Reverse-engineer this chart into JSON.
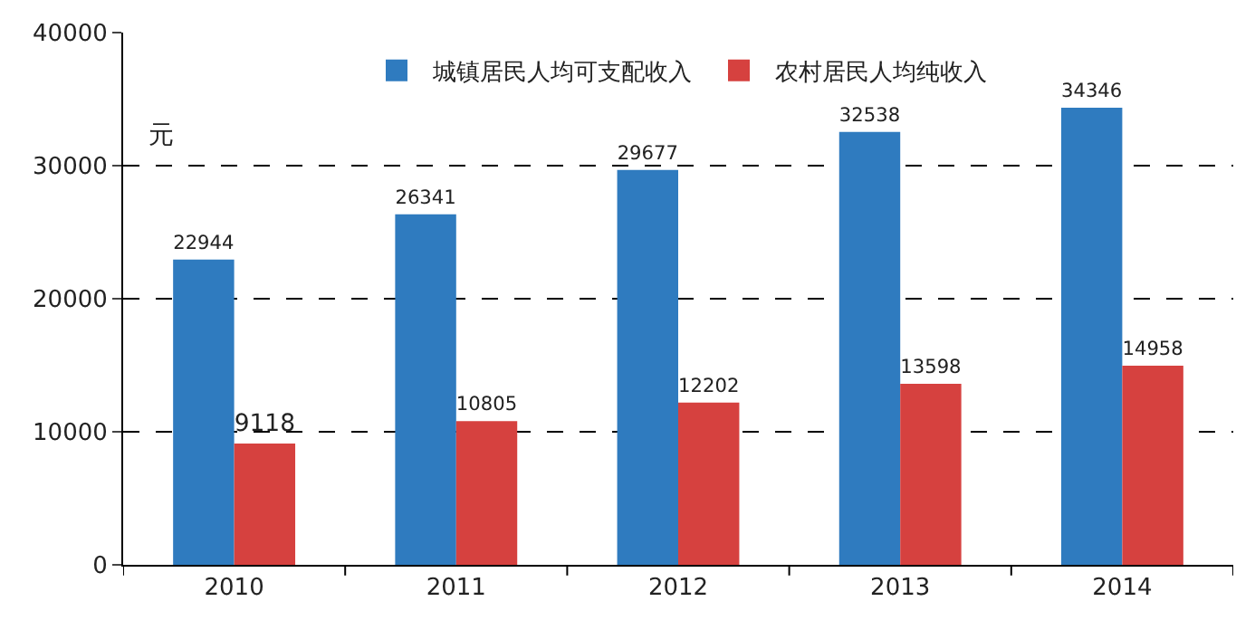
{
  "chart_data": {
    "type": "bar",
    "ylabel": "元",
    "categories": [
      "2010",
      "2011",
      "2012",
      "2013",
      "2014"
    ],
    "series": [
      {
        "name": "城镇居民人均可支配收入",
        "color": "#2f7bbf",
        "values": [
          22944,
          26341,
          29677,
          32538,
          34346
        ]
      },
      {
        "name": "农村居民人均纯收入",
        "color": "#d6413f",
        "values": [
          9118,
          10805,
          12202,
          13598,
          14958
        ]
      }
    ],
    "ylim": [
      0,
      40000
    ],
    "yticks": [
      0,
      10000,
      20000,
      30000,
      40000
    ],
    "grid": "y",
    "legend": "top",
    "data_labels": true
  }
}
